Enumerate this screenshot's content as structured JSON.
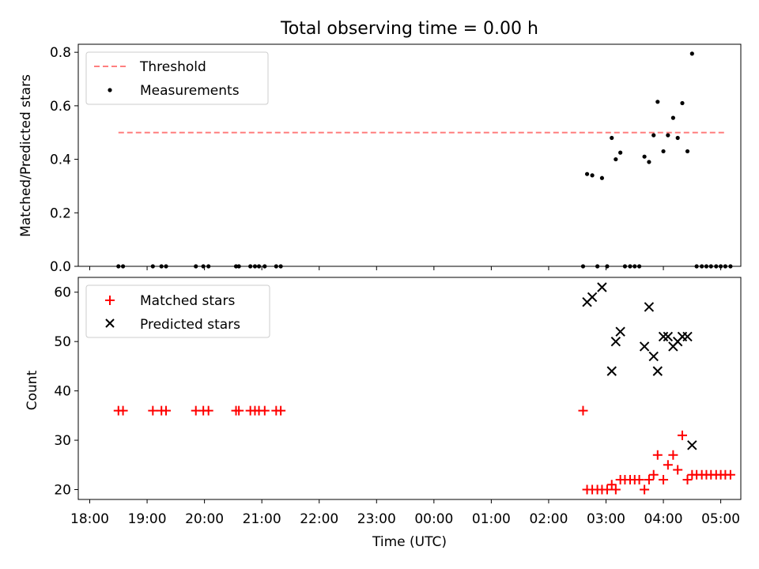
{
  "title": "Total observing time = 0.00 h",
  "chart_data": [
    {
      "type": "scatter",
      "panel": "top",
      "ylabel": "Matched/Predicted stars",
      "ylim": [
        0,
        0.83
      ],
      "yticks": [
        0.0,
        0.2,
        0.4,
        0.6,
        0.8
      ],
      "ytick_labels": [
        "0.0",
        "0.2",
        "0.4",
        "0.6",
        "0.8"
      ],
      "x_unit": "hours after 18:00 UTC",
      "xlim": [
        -0.2,
        11.35
      ],
      "legend_position": "upper-left",
      "threshold": {
        "name": "Threshold",
        "value": 0.5,
        "x_start": 0.5,
        "x_end": 11.1,
        "color": "#ff7f7f"
      },
      "series": [
        {
          "name": "Measurements",
          "color": "#000000",
          "marker": "dot",
          "points": [
            [
              0.5,
              0
            ],
            [
              0.58,
              0
            ],
            [
              1.1,
              0
            ],
            [
              1.25,
              0
            ],
            [
              1.33,
              0
            ],
            [
              1.85,
              0
            ],
            [
              1.98,
              0
            ],
            [
              2.07,
              0
            ],
            [
              2.55,
              0
            ],
            [
              2.6,
              0
            ],
            [
              2.8,
              0
            ],
            [
              2.88,
              0
            ],
            [
              2.95,
              0
            ],
            [
              3.05,
              0
            ],
            [
              3.25,
              0
            ],
            [
              3.33,
              0
            ],
            [
              8.6,
              0
            ],
            [
              8.67,
              0.345
            ],
            [
              8.76,
              0.34
            ],
            [
              8.85,
              0
            ],
            [
              8.93,
              0.33
            ],
            [
              9.02,
              0
            ],
            [
              9.1,
              0.48
            ],
            [
              9.17,
              0.4
            ],
            [
              9.25,
              0.425
            ],
            [
              9.33,
              0
            ],
            [
              9.42,
              0
            ],
            [
              9.5,
              0
            ],
            [
              9.58,
              0
            ],
            [
              9.67,
              0.41
            ],
            [
              9.75,
              0.39
            ],
            [
              9.83,
              0.49
            ],
            [
              9.9,
              0.615
            ],
            [
              10.0,
              0.43
            ],
            [
              10.08,
              0.49
            ],
            [
              10.17,
              0.555
            ],
            [
              10.25,
              0.48
            ],
            [
              10.33,
              0.61
            ],
            [
              10.42,
              0.43
            ],
            [
              10.5,
              0.795
            ],
            [
              10.58,
              0
            ],
            [
              10.67,
              0
            ],
            [
              10.75,
              0
            ],
            [
              10.83,
              0
            ],
            [
              10.92,
              0
            ],
            [
              11.0,
              0
            ],
            [
              11.08,
              0
            ],
            [
              11.17,
              0
            ]
          ]
        }
      ]
    },
    {
      "type": "scatter",
      "panel": "bottom",
      "ylabel": "Count",
      "xlabel": "Time (UTC)",
      "ylim": [
        18,
        63
      ],
      "yticks": [
        20,
        30,
        40,
        50,
        60
      ],
      "ytick_labels": [
        "20",
        "30",
        "40",
        "50",
        "60"
      ],
      "x_unit": "hours after 18:00 UTC",
      "xlim": [
        -0.2,
        11.35
      ],
      "xticks": [
        0,
        1,
        2,
        3,
        4,
        5,
        6,
        7,
        8,
        9,
        10,
        11
      ],
      "xtick_labels": [
        "18:00",
        "19:00",
        "20:00",
        "21:00",
        "22:00",
        "23:00",
        "00:00",
        "01:00",
        "02:00",
        "03:00",
        "04:00",
        "05:00"
      ],
      "legend_position": "upper-left",
      "series": [
        {
          "name": "Matched stars",
          "color": "#ff0000",
          "marker": "plus",
          "points": [
            [
              0.5,
              36
            ],
            [
              0.58,
              36
            ],
            [
              1.1,
              36
            ],
            [
              1.25,
              36
            ],
            [
              1.33,
              36
            ],
            [
              1.85,
              36
            ],
            [
              1.98,
              36
            ],
            [
              2.07,
              36
            ],
            [
              2.55,
              36
            ],
            [
              2.6,
              36
            ],
            [
              2.8,
              36
            ],
            [
              2.88,
              36
            ],
            [
              2.95,
              36
            ],
            [
              3.05,
              36
            ],
            [
              3.25,
              36
            ],
            [
              3.33,
              36
            ],
            [
              8.6,
              36
            ],
            [
              8.67,
              20
            ],
            [
              8.76,
              20
            ],
            [
              8.85,
              20
            ],
            [
              8.93,
              20
            ],
            [
              9.02,
              20
            ],
            [
              9.1,
              21
            ],
            [
              9.17,
              20
            ],
            [
              9.25,
              22
            ],
            [
              9.33,
              22
            ],
            [
              9.42,
              22
            ],
            [
              9.5,
              22
            ],
            [
              9.58,
              22
            ],
            [
              9.67,
              20
            ],
            [
              9.75,
              22
            ],
            [
              9.83,
              23
            ],
            [
              9.9,
              27
            ],
            [
              10.0,
              22
            ],
            [
              10.08,
              25
            ],
            [
              10.17,
              27
            ],
            [
              10.25,
              24
            ],
            [
              10.33,
              31
            ],
            [
              10.42,
              22
            ],
            [
              10.5,
              23
            ],
            [
              10.58,
              23
            ],
            [
              10.67,
              23
            ],
            [
              10.75,
              23
            ],
            [
              10.83,
              23
            ],
            [
              10.92,
              23
            ],
            [
              11.0,
              23
            ],
            [
              11.08,
              23
            ],
            [
              11.17,
              23
            ]
          ]
        },
        {
          "name": "Predicted stars",
          "color": "#000000",
          "marker": "x",
          "points": [
            [
              8.67,
              58
            ],
            [
              8.76,
              59
            ],
            [
              8.93,
              61
            ],
            [
              9.1,
              44
            ],
            [
              9.17,
              50
            ],
            [
              9.25,
              52
            ],
            [
              9.67,
              49
            ],
            [
              9.75,
              57
            ],
            [
              9.83,
              47
            ],
            [
              9.9,
              44
            ],
            [
              10.0,
              51
            ],
            [
              10.08,
              51
            ],
            [
              10.17,
              49
            ],
            [
              10.25,
              50
            ],
            [
              10.33,
              51
            ],
            [
              10.42,
              51
            ],
            [
              10.5,
              29
            ]
          ]
        }
      ]
    }
  ]
}
